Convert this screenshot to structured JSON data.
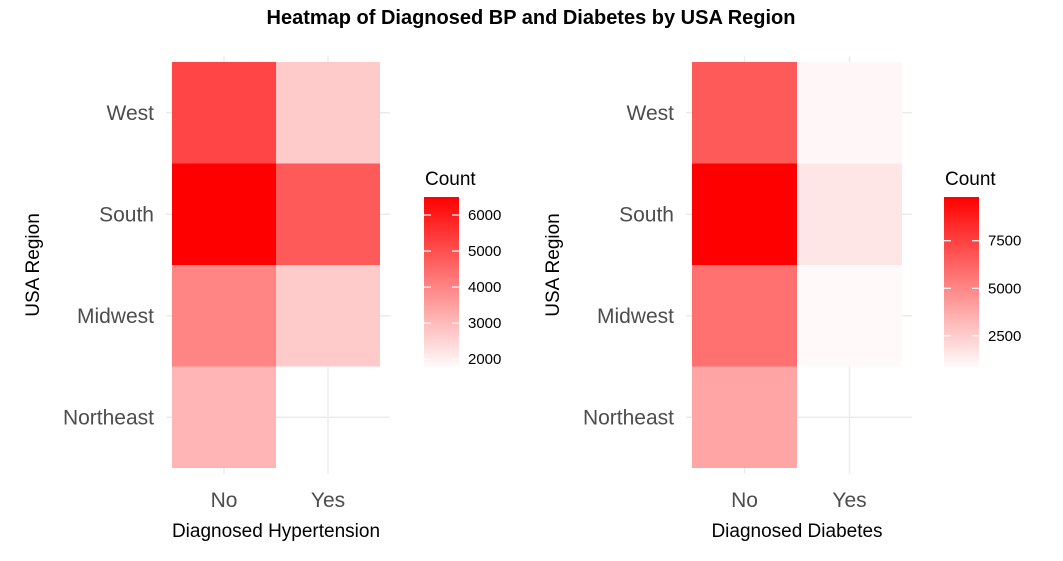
{
  "title": "Heatmap of Diagnosed BP and Diabetes by USA Region",
  "colors": {
    "low": "#ffffff",
    "high": "#ff0000"
  },
  "chart_data": [
    {
      "type": "heatmap",
      "xlabel": "Diagnosed Hypertension",
      "ylabel": "USA Region",
      "x_categories": [
        "No",
        "Yes"
      ],
      "y_categories": [
        "Northeast",
        "Midwest",
        "South",
        "West"
      ],
      "legend": {
        "title": "Count",
        "breaks": [
          2000,
          3000,
          4000,
          5000,
          6000
        ],
        "labels": [
          "2000",
          "3000",
          "4000",
          "5000",
          "6000"
        ],
        "range": [
          1700,
          6500
        ],
        "placement": "right"
      },
      "grid": true,
      "cells": [
        {
          "x": "No",
          "y": "West",
          "value": 5200
        },
        {
          "x": "Yes",
          "y": "West",
          "value": 2700
        },
        {
          "x": "No",
          "y": "South",
          "value": 6500
        },
        {
          "x": "Yes",
          "y": "South",
          "value": 4800
        },
        {
          "x": "No",
          "y": "Midwest",
          "value": 4000
        },
        {
          "x": "Yes",
          "y": "Midwest",
          "value": 2700
        },
        {
          "x": "No",
          "y": "Northeast",
          "value": 3100
        },
        {
          "x": "Yes",
          "y": "Northeast",
          "value": null
        }
      ]
    },
    {
      "type": "heatmap",
      "xlabel": "Diagnosed Diabetes",
      "ylabel": "USA Region",
      "x_categories": [
        "No",
        "Yes"
      ],
      "y_categories": [
        "Northeast",
        "Midwest",
        "South",
        "West"
      ],
      "legend": {
        "title": "Count",
        "breaks": [
          2500,
          5000,
          7500
        ],
        "labels": [
          "2500",
          "5000",
          "7500"
        ],
        "range": [
          700,
          9800
        ],
        "placement": "right"
      },
      "grid": true,
      "cells": [
        {
          "x": "No",
          "y": "West",
          "value": 6600
        },
        {
          "x": "Yes",
          "y": "West",
          "value": 1000
        },
        {
          "x": "No",
          "y": "South",
          "value": 9800
        },
        {
          "x": "Yes",
          "y": "South",
          "value": 1600
        },
        {
          "x": "No",
          "y": "Midwest",
          "value": 5800
        },
        {
          "x": "Yes",
          "y": "Midwest",
          "value": 900
        },
        {
          "x": "No",
          "y": "Northeast",
          "value": 3900
        },
        {
          "x": "Yes",
          "y": "Northeast",
          "value": null
        }
      ]
    }
  ]
}
